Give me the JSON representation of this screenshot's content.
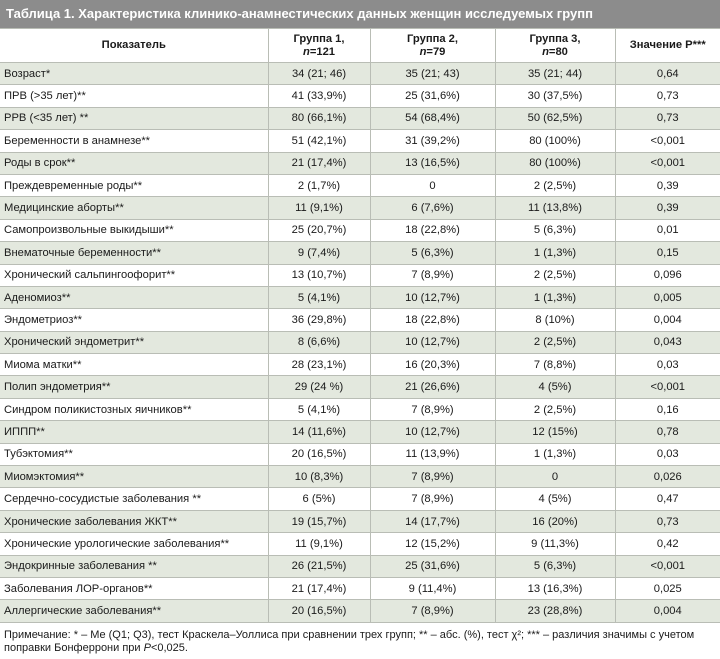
{
  "title": "Таблица 1. Характеристика клинико-анамнестических данных женщин исследуемых групп",
  "table": {
    "header": [
      {
        "line1": "Показатель"
      },
      {
        "line1": "Группа 1,",
        "n": "n",
        "count": "=121"
      },
      {
        "line1": "Группа 2,",
        "n": "n",
        "count": "=79"
      },
      {
        "line1": "Группа 3,",
        "n": "n",
        "count": "=80"
      },
      {
        "line1": "Значение P***"
      }
    ],
    "rows": [
      [
        "Возраст*",
        "34 (21; 46)",
        "35 (21; 43)",
        "35 (21; 44)",
        "0,64"
      ],
      [
        "ПРВ (>35 лет)**",
        "41 (33,9%)",
        "25 (31,6%)",
        "30 (37,5%)",
        "0,73"
      ],
      [
        "РРВ (<35 лет) **",
        "80 (66,1%)",
        "54 (68,4%)",
        "50 (62,5%)",
        "0,73"
      ],
      [
        "Беременности в анамнезе**",
        "51 (42,1%)",
        "31 (39,2%)",
        "80 (100%)",
        "<0,001"
      ],
      [
        "Роды в срок**",
        "21 (17,4%)",
        "13 (16,5%)",
        "80 (100%)",
        "<0,001"
      ],
      [
        "Преждевременные роды**",
        "2 (1,7%)",
        "0",
        "2 (2,5%)",
        "0,39"
      ],
      [
        "Медицинские аборты**",
        "11 (9,1%)",
        "6 (7,6%)",
        "11 (13,8%)",
        "0,39"
      ],
      [
        "Самопроизвольные выкидыши**",
        "25 (20,7%)",
        "18 (22,8%)",
        "5 (6,3%)",
        "0,01"
      ],
      [
        "Внематочные беременности**",
        "9 (7,4%)",
        "5 (6,3%)",
        "1 (1,3%)",
        "0,15"
      ],
      [
        "Хронический сальпингоофорит**",
        "13 (10,7%)",
        "7 (8,9%)",
        "2 (2,5%)",
        "0,096"
      ],
      [
        "Аденомиоз**",
        "5 (4,1%)",
        "10 (12,7%)",
        "1 (1,3%)",
        "0,005"
      ],
      [
        "Эндометриоз**",
        "36 (29,8%)",
        "18 (22,8%)",
        "8 (10%)",
        "0,004"
      ],
      [
        "Хронический эндометрит**",
        "8 (6,6%)",
        "10 (12,7%)",
        "2 (2,5%)",
        "0,043"
      ],
      [
        "Миома матки**",
        "28 (23,1%)",
        "16 (20,3%)",
        "7 (8,8%)",
        "0,03"
      ],
      [
        "Полип эндометрия**",
        "29 (24 %)",
        "21 (26,6%)",
        "4 (5%)",
        "<0,001"
      ],
      [
        "Синдром поликистозных яичников**",
        "5 (4,1%)",
        "7 (8,9%)",
        "2 (2,5%)",
        "0,16"
      ],
      [
        "ИППП**",
        "14 (11,6%)",
        "10 (12,7%)",
        "12 (15%)",
        "0,78"
      ],
      [
        "Тубэктомия**",
        "20 (16,5%)",
        "11 (13,9%)",
        "1 (1,3%)",
        "0,03"
      ],
      [
        "Миомэктомия**",
        "10 (8,3%)",
        "7 (8,9%)",
        "0",
        "0,026"
      ],
      [
        "Сердечно-сосудистые заболевания **",
        "6 (5%)",
        "7 (8,9%)",
        "4 (5%)",
        "0,47"
      ],
      [
        "Хронические заболевания ЖКТ**",
        "19 (15,7%)",
        "14 (17,7%)",
        "16 (20%)",
        "0,73"
      ],
      [
        "Хронические урологические заболевания**",
        "11 (9,1%)",
        "12 (15,2%)",
        "9 (11,3%)",
        "0,42"
      ],
      [
        "Эндокринные заболевания **",
        "26 (21,5%)",
        "25 (31,6%)",
        "5 (6,3%)",
        "<0,001"
      ],
      [
        "Заболевания ЛОР-органов**",
        "21 (17,4%)",
        "9 (11,4%)",
        "13 (16,3%)",
        "0,025"
      ],
      [
        "Аллергические заболевания**",
        "20 (16,5%)",
        "7 (8,9%)",
        "23 (28,8%)",
        "0,004"
      ]
    ]
  },
  "footnote": [
    "Примечание: * – Me (Q1; Q3), тест Краскела–Уоллиса при сравнении трех групп; ** – абс. (%), тест χ²; *** – различия значимы с учетом поправки Бонферрони при ",
    "P",
    "<0,025."
  ]
}
